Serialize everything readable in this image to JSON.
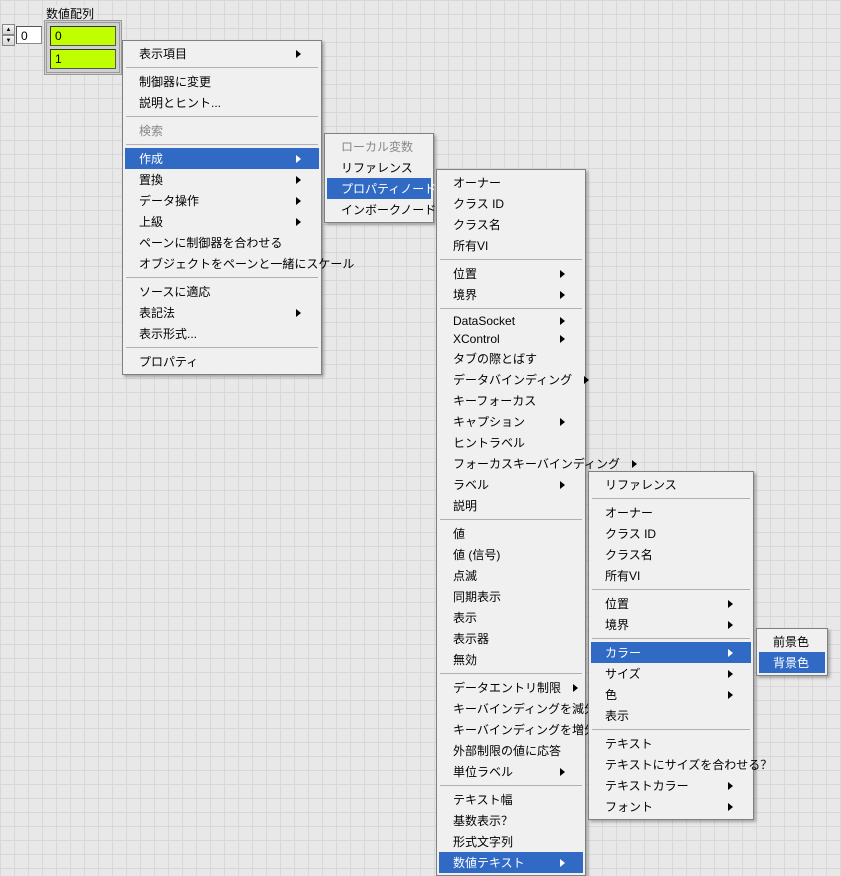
{
  "colors": {
    "grid_bg": "#e8e8e8",
    "grid_line": "#d8d8d8",
    "menu_bg": "#f0f0f0",
    "menu_border": "#808080",
    "highlight_bg": "#316ac5",
    "highlight_fg": "#ffffff",
    "disabled_fg": "#888888",
    "cell_bg": "#bfff00"
  },
  "array": {
    "label": "数値配列",
    "index": "0",
    "cells": [
      "0",
      "1"
    ]
  },
  "menu1": {
    "items": [
      {
        "label": "表示項目",
        "arrow": true
      },
      {
        "sep": true
      },
      {
        "label": "制御器に変更"
      },
      {
        "label": "説明とヒント..."
      },
      {
        "sep": true
      },
      {
        "label": "検索",
        "disabled": true
      },
      {
        "sep": true
      },
      {
        "label": "作成",
        "arrow": true,
        "hl": true
      },
      {
        "label": "置換",
        "arrow": true
      },
      {
        "label": "データ操作",
        "arrow": true
      },
      {
        "label": "上級",
        "arrow": true
      },
      {
        "label": "ペーンに制御器を合わせる"
      },
      {
        "label": "オブジェクトをペーンと一緒にスケール"
      },
      {
        "sep": true
      },
      {
        "label": "ソースに適応"
      },
      {
        "label": "表記法",
        "arrow": true
      },
      {
        "label": "表示形式..."
      },
      {
        "sep": true
      },
      {
        "label": "プロパティ"
      }
    ]
  },
  "menu2": {
    "items": [
      {
        "label": "ローカル変数",
        "disabled": true
      },
      {
        "label": "リファレンス"
      },
      {
        "label": "プロパティノード",
        "arrow": true,
        "hl": true
      },
      {
        "label": "インボークノード",
        "arrow": true
      }
    ]
  },
  "menu3": {
    "items": [
      {
        "label": "オーナー"
      },
      {
        "label": "クラス ID"
      },
      {
        "label": "クラス名"
      },
      {
        "label": "所有VI"
      },
      {
        "sep": true
      },
      {
        "label": "位置",
        "arrow": true
      },
      {
        "label": "境界",
        "arrow": true
      },
      {
        "sep": true
      },
      {
        "label": "DataSocket",
        "arrow": true
      },
      {
        "label": "XControl",
        "arrow": true
      },
      {
        "label": "タブの際とばす"
      },
      {
        "label": "データバインディング",
        "arrow": true
      },
      {
        "label": "キーフォーカス"
      },
      {
        "label": "キャプション",
        "arrow": true
      },
      {
        "label": "ヒントラベル"
      },
      {
        "label": "フォーカスキーバインディング",
        "arrow": true
      },
      {
        "label": "ラベル",
        "arrow": true
      },
      {
        "label": "説明"
      },
      {
        "sep": true
      },
      {
        "label": "値"
      },
      {
        "label": "値 (信号)"
      },
      {
        "label": "点滅"
      },
      {
        "label": "同期表示"
      },
      {
        "label": "表示"
      },
      {
        "label": "表示器"
      },
      {
        "label": "無効"
      },
      {
        "sep": true
      },
      {
        "label": "データエントリ制限",
        "arrow": true
      },
      {
        "label": "キーバインディングを減分",
        "arrow": true
      },
      {
        "label": "キーバインディングを増分",
        "arrow": true
      },
      {
        "label": "外部制限の値に応答"
      },
      {
        "label": "単位ラベル",
        "arrow": true
      },
      {
        "sep": true
      },
      {
        "label": "テキスト幅"
      },
      {
        "label": "基数表示？"
      },
      {
        "label": "形式文字列"
      },
      {
        "label": "数値テキスト",
        "arrow": true,
        "hl": true
      }
    ]
  },
  "menu4": {
    "items": [
      {
        "label": "リファレンス"
      },
      {
        "sep": true
      },
      {
        "label": "オーナー"
      },
      {
        "label": "クラス ID"
      },
      {
        "label": "クラス名"
      },
      {
        "label": "所有VI"
      },
      {
        "sep": true
      },
      {
        "label": "位置",
        "arrow": true
      },
      {
        "label": "境界",
        "arrow": true
      },
      {
        "sep": true
      },
      {
        "label": "カラー",
        "arrow": true,
        "hl": true
      },
      {
        "label": "サイズ",
        "arrow": true
      },
      {
        "label": "色",
        "arrow": true
      },
      {
        "label": "表示"
      },
      {
        "sep": true
      },
      {
        "label": "テキスト"
      },
      {
        "label": "テキストにサイズを合わせる？"
      },
      {
        "label": "テキストカラー",
        "arrow": true
      },
      {
        "label": "フォント",
        "arrow": true
      }
    ]
  },
  "menu5": {
    "items": [
      {
        "label": "前景色"
      },
      {
        "label": "背景色",
        "hl": true
      }
    ]
  }
}
